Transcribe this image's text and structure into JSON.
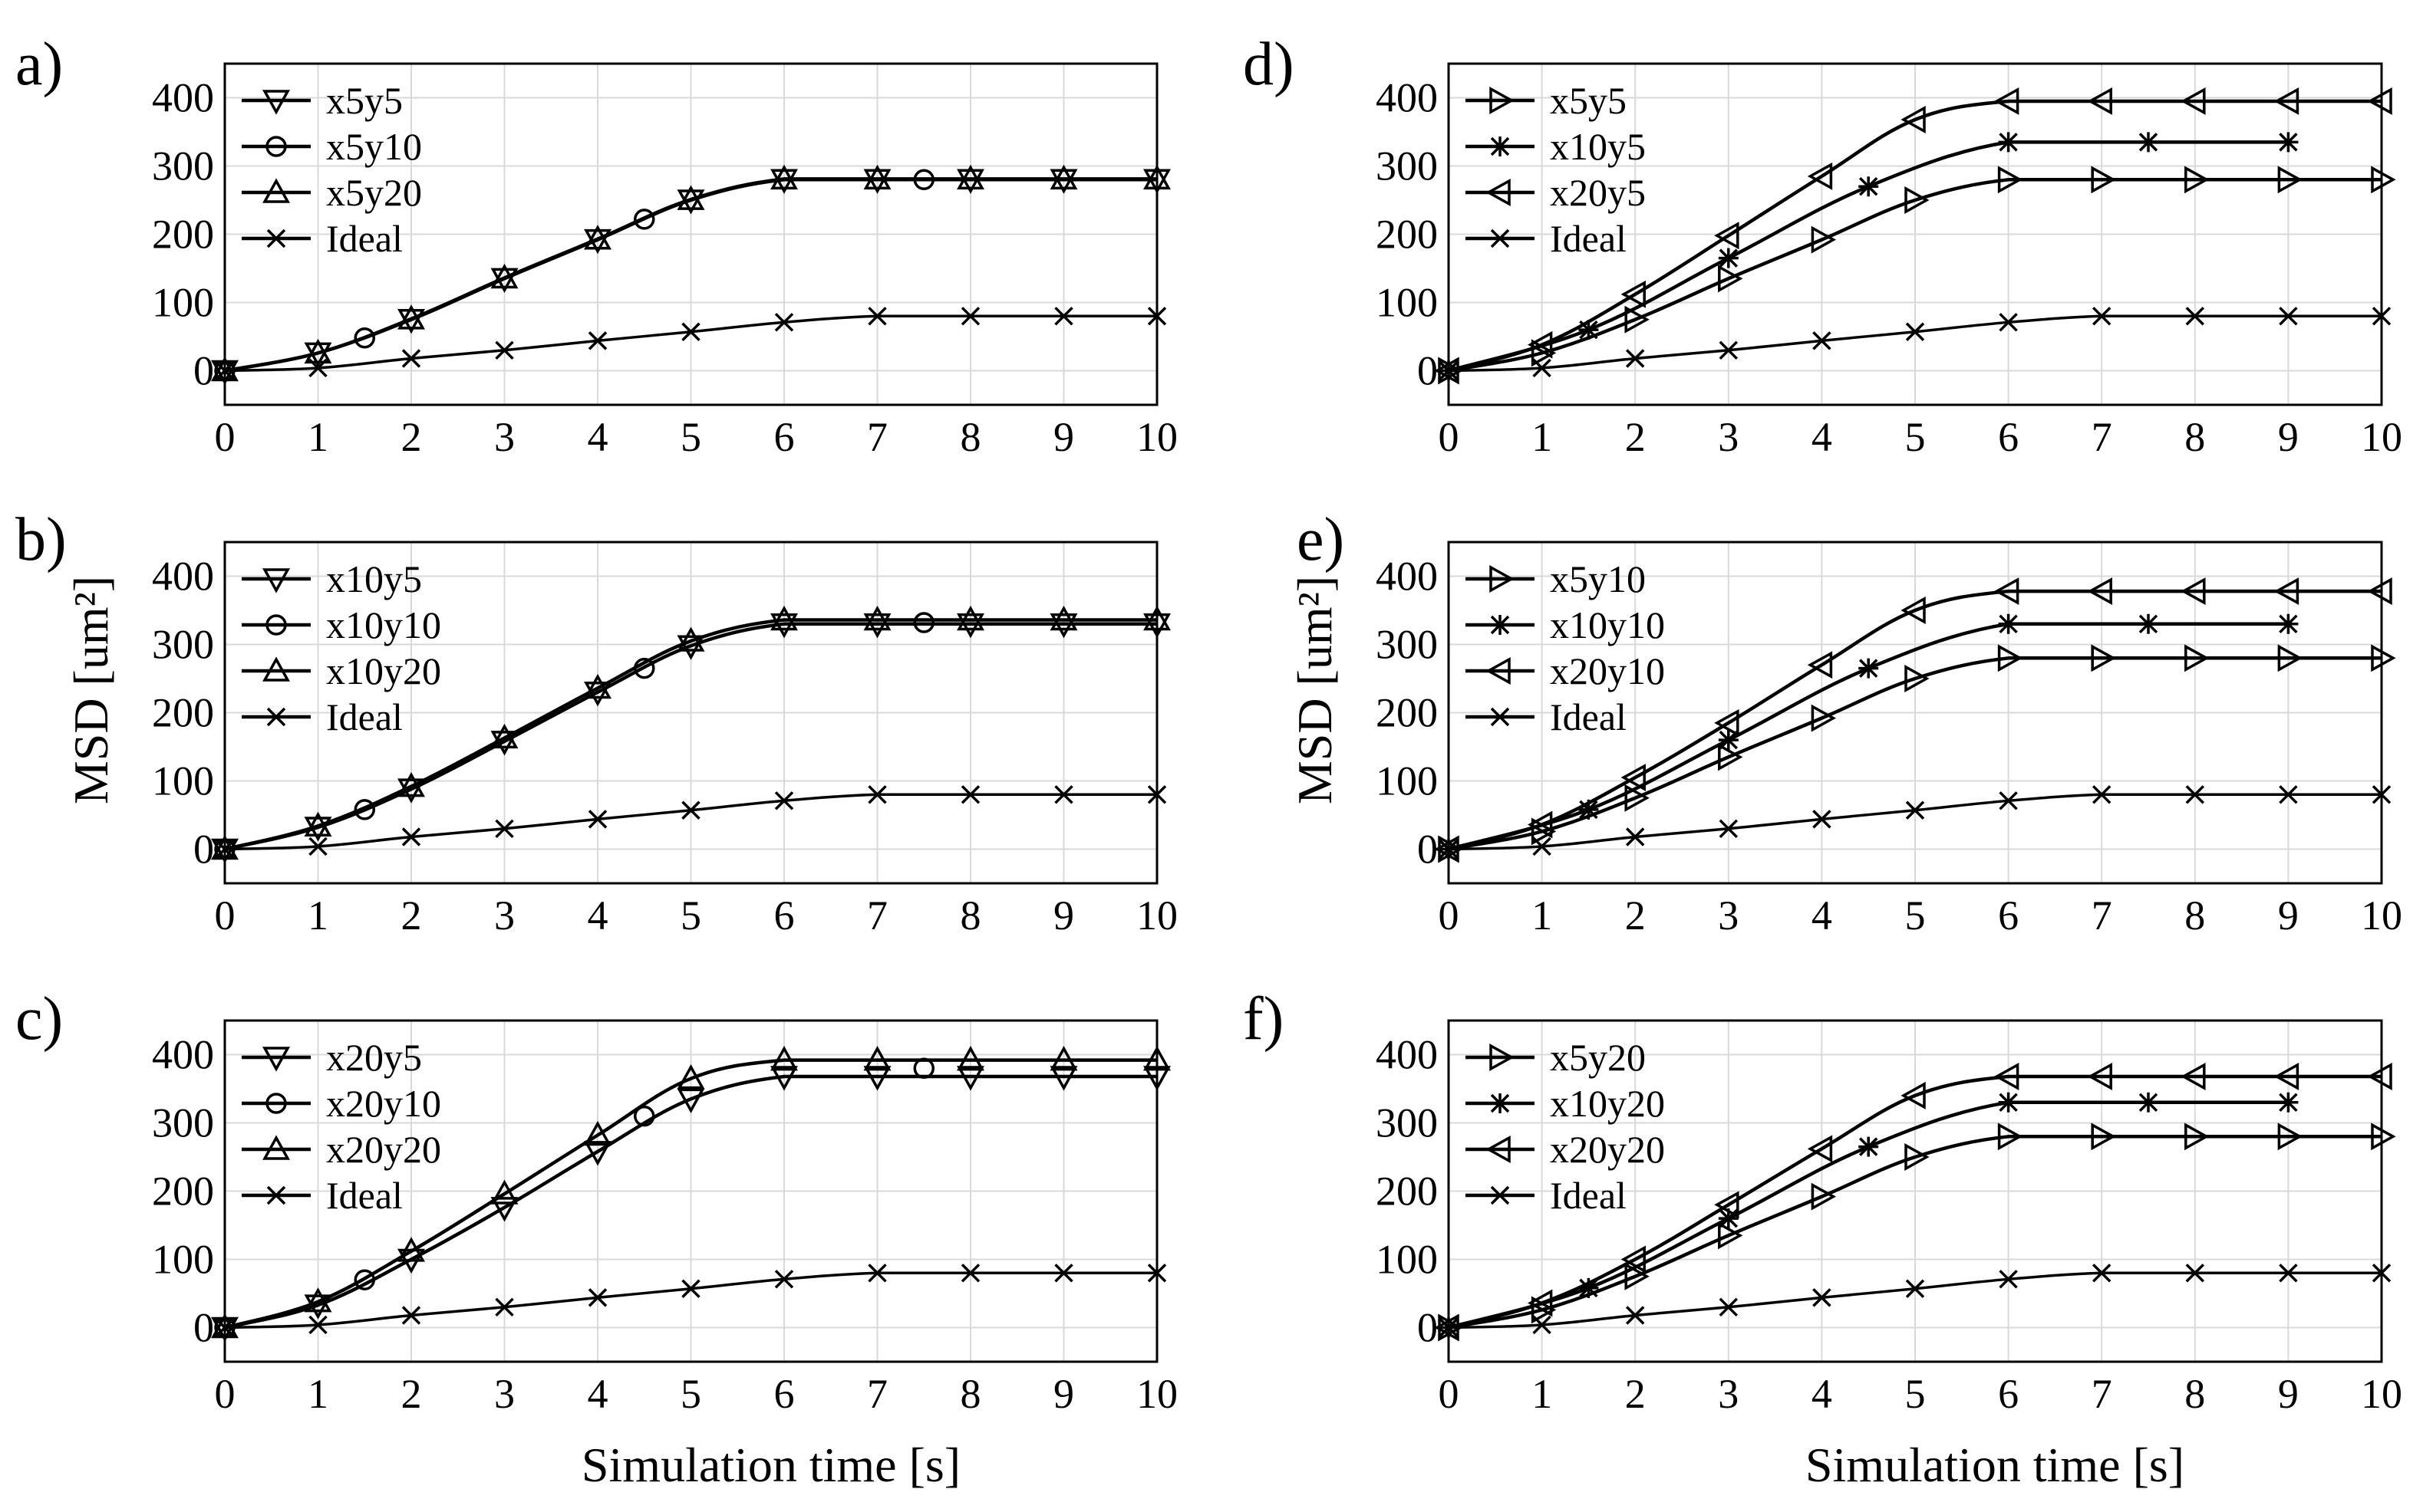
{
  "figure": {
    "x_axis_title": "Simulation time [s]",
    "y_axis_title": "MSD [um²]"
  },
  "chart_data": [
    {
      "panel": "a)",
      "type": "line",
      "xlim": [
        0,
        10
      ],
      "ylim": [
        -50,
        450
      ],
      "xticks": [
        0,
        1,
        2,
        3,
        4,
        5,
        6,
        7,
        8,
        9,
        10
      ],
      "yticks": [
        0,
        100,
        200,
        300,
        400
      ],
      "grid": true,
      "legend_position": "top-left",
      "series": [
        {
          "name": "x5y5",
          "marker": "triangle-down",
          "x": [
            0,
            1,
            2,
            3,
            4,
            5,
            6,
            7,
            8,
            9,
            10
          ],
          "y": [
            0,
            26,
            75,
            135,
            192,
            250,
            280,
            280,
            280,
            280,
            280
          ]
        },
        {
          "name": "x5y10",
          "marker": "circle",
          "x": [
            0,
            1.5,
            4.5,
            7.5
          ],
          "y": [
            0,
            48,
            222,
            280
          ]
        },
        {
          "name": "x5y20",
          "marker": "triangle-up",
          "x": [
            0,
            1,
            2,
            3,
            4,
            5,
            6,
            7,
            8,
            9,
            10
          ],
          "y": [
            0,
            26,
            76,
            136,
            193,
            251,
            281,
            281,
            281,
            281,
            281
          ]
        },
        {
          "name": "Ideal",
          "marker": "x",
          "x": [
            0,
            1,
            2,
            3,
            4,
            5,
            6,
            7,
            8,
            9,
            10
          ],
          "y": [
            0,
            4,
            18,
            30,
            44,
            57,
            71,
            80,
            80,
            80,
            80
          ]
        }
      ]
    },
    {
      "panel": "b)",
      "type": "line",
      "xlim": [
        0,
        10
      ],
      "ylim": [
        -50,
        450
      ],
      "xticks": [
        0,
        1,
        2,
        3,
        4,
        5,
        6,
        7,
        8,
        9,
        10
      ],
      "yticks": [
        0,
        100,
        200,
        300,
        400
      ],
      "grid": true,
      "legend_position": "top-left",
      "series": [
        {
          "name": "x10y5",
          "marker": "triangle-down",
          "x": [
            0,
            1,
            2,
            3,
            4,
            5,
            6,
            7,
            8,
            9,
            10
          ],
          "y": [
            0,
            32,
            88,
            158,
            230,
            298,
            330,
            330,
            330,
            330,
            330
          ]
        },
        {
          "name": "x10y10",
          "marker": "circle",
          "x": [
            0,
            1.5,
            4.5,
            7.5
          ],
          "y": [
            0,
            58,
            265,
            332
          ]
        },
        {
          "name": "x10y20",
          "marker": "triangle-up",
          "x": [
            0,
            1,
            2,
            3,
            4,
            5,
            6,
            7,
            8,
            9,
            10
          ],
          "y": [
            0,
            34,
            92,
            163,
            236,
            305,
            336,
            336,
            336,
            336,
            336
          ]
        },
        {
          "name": "Ideal",
          "marker": "x",
          "x": [
            0,
            1,
            2,
            3,
            4,
            5,
            6,
            7,
            8,
            9,
            10
          ],
          "y": [
            0,
            4,
            18,
            30,
            44,
            57,
            71,
            80,
            80,
            80,
            80
          ]
        }
      ]
    },
    {
      "panel": "c)",
      "type": "line",
      "xlim": [
        0,
        10
      ],
      "ylim": [
        -50,
        450
      ],
      "xticks": [
        0,
        1,
        2,
        3,
        4,
        5,
        6,
        7,
        8,
        9,
        10
      ],
      "yticks": [
        0,
        100,
        200,
        300,
        400
      ],
      "grid": true,
      "legend_position": "top-left",
      "series": [
        {
          "name": "x20y5",
          "marker": "triangle-down",
          "x": [
            0,
            1,
            2,
            3,
            4,
            5,
            6,
            7,
            8,
            9,
            10
          ],
          "y": [
            0,
            33,
            100,
            176,
            258,
            335,
            368,
            368,
            368,
            368,
            368
          ]
        },
        {
          "name": "x20y10",
          "marker": "circle",
          "x": [
            0,
            1.5,
            4.5,
            7.5
          ],
          "y": [
            0,
            70,
            310,
            380
          ]
        },
        {
          "name": "x20y20",
          "marker": "triangle-up",
          "x": [
            0,
            1,
            2,
            3,
            4,
            5,
            6,
            7,
            8,
            9,
            10
          ],
          "y": [
            0,
            38,
            112,
            196,
            282,
            365,
            392,
            392,
            392,
            392,
            392
          ]
        },
        {
          "name": "Ideal",
          "marker": "x",
          "x": [
            0,
            1,
            2,
            3,
            4,
            5,
            6,
            7,
            8,
            9,
            10
          ],
          "y": [
            0,
            4,
            18,
            30,
            44,
            57,
            71,
            80,
            80,
            80,
            80
          ]
        }
      ]
    },
    {
      "panel": "d)",
      "type": "line",
      "xlim": [
        0,
        10
      ],
      "ylim": [
        -50,
        450
      ],
      "xticks": [
        0,
        1,
        2,
        3,
        4,
        5,
        6,
        7,
        8,
        9,
        10
      ],
      "yticks": [
        0,
        100,
        200,
        300,
        400
      ],
      "grid": true,
      "legend_position": "top-left",
      "series": [
        {
          "name": "x5y5",
          "marker": "triangle-right",
          "x": [
            0,
            1,
            2,
            3,
            4,
            5,
            6,
            7,
            8,
            9,
            10
          ],
          "y": [
            0,
            26,
            75,
            135,
            192,
            250,
            280,
            280,
            280,
            280,
            280
          ]
        },
        {
          "name": "x10y5",
          "marker": "asterisk",
          "x": [
            0,
            1.5,
            3,
            4.5,
            6,
            7.5,
            9
          ],
          "y": [
            0,
            60,
            165,
            270,
            335,
            335,
            335
          ]
        },
        {
          "name": "x20y5",
          "marker": "triangle-left",
          "x": [
            0,
            1,
            2,
            3,
            4,
            5,
            6,
            7,
            8,
            9,
            10
          ],
          "y": [
            0,
            38,
            112,
            198,
            285,
            368,
            395,
            395,
            395,
            395,
            395
          ]
        },
        {
          "name": "Ideal",
          "marker": "x",
          "x": [
            0,
            1,
            2,
            3,
            4,
            5,
            6,
            7,
            8,
            9,
            10
          ],
          "y": [
            0,
            4,
            18,
            30,
            44,
            57,
            71,
            80,
            80,
            80,
            80
          ]
        }
      ]
    },
    {
      "panel": "e)",
      "type": "line",
      "xlim": [
        0,
        10
      ],
      "ylim": [
        -50,
        450
      ],
      "xticks": [
        0,
        1,
        2,
        3,
        4,
        5,
        6,
        7,
        8,
        9,
        10
      ],
      "yticks": [
        0,
        100,
        200,
        300,
        400
      ],
      "grid": true,
      "legend_position": "top-left",
      "series": [
        {
          "name": "x5y10",
          "marker": "triangle-right",
          "x": [
            0,
            1,
            2,
            3,
            4,
            5,
            6,
            7,
            8,
            9,
            10
          ],
          "y": [
            0,
            26,
            75,
            135,
            192,
            250,
            280,
            280,
            280,
            280,
            280
          ]
        },
        {
          "name": "x10y10",
          "marker": "asterisk",
          "x": [
            0,
            1.5,
            3,
            4.5,
            6,
            7.5,
            9
          ],
          "y": [
            0,
            58,
            160,
            265,
            330,
            330,
            330
          ]
        },
        {
          "name": "x20y10",
          "marker": "triangle-left",
          "x": [
            0,
            1,
            2,
            3,
            4,
            5,
            6,
            7,
            8,
            9,
            10
          ],
          "y": [
            0,
            36,
            105,
            185,
            270,
            350,
            378,
            378,
            378,
            378,
            378
          ]
        },
        {
          "name": "Ideal",
          "marker": "x",
          "x": [
            0,
            1,
            2,
            3,
            4,
            5,
            6,
            7,
            8,
            9,
            10
          ],
          "y": [
            0,
            4,
            18,
            30,
            44,
            57,
            71,
            80,
            80,
            80,
            80
          ]
        }
      ]
    },
    {
      "panel": "f)",
      "type": "line",
      "xlim": [
        0,
        10
      ],
      "ylim": [
        -50,
        450
      ],
      "xticks": [
        0,
        1,
        2,
        3,
        4,
        5,
        6,
        7,
        8,
        9,
        10
      ],
      "yticks": [
        0,
        100,
        200,
        300,
        400
      ],
      "grid": true,
      "legend_position": "top-left",
      "series": [
        {
          "name": "x5y20",
          "marker": "triangle-right",
          "x": [
            0,
            1,
            2,
            3,
            4,
            5,
            6,
            7,
            8,
            9,
            10
          ],
          "y": [
            0,
            26,
            75,
            135,
            192,
            250,
            280,
            280,
            280,
            280,
            280
          ]
        },
        {
          "name": "x10y20",
          "marker": "asterisk",
          "x": [
            0,
            1.5,
            3,
            4.5,
            6,
            7.5,
            9
          ],
          "y": [
            0,
            58,
            160,
            265,
            330,
            330,
            330
          ]
        },
        {
          "name": "x20y20",
          "marker": "triangle-left",
          "x": [
            0,
            1,
            2,
            3,
            4,
            5,
            6,
            7,
            8,
            9,
            10
          ],
          "y": [
            0,
            36,
            100,
            180,
            262,
            340,
            368,
            368,
            368,
            368,
            368
          ]
        },
        {
          "name": "Ideal",
          "marker": "x",
          "x": [
            0,
            1,
            2,
            3,
            4,
            5,
            6,
            7,
            8,
            9,
            10
          ],
          "y": [
            0,
            4,
            18,
            30,
            44,
            57,
            71,
            80,
            80,
            80,
            80
          ]
        }
      ]
    }
  ]
}
